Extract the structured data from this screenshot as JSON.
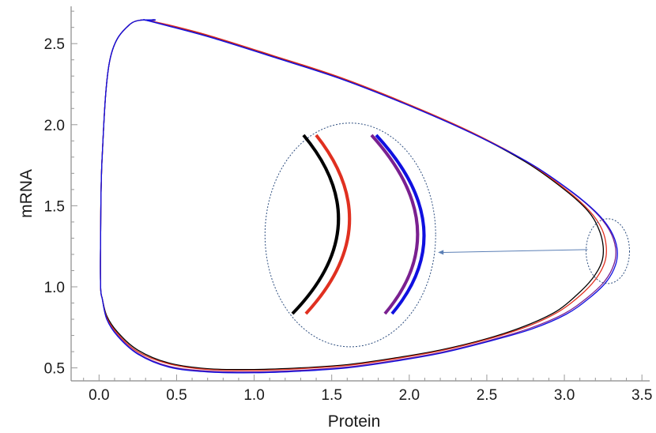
{
  "chart_data": {
    "type": "line",
    "xlabel": "Protein",
    "ylabel": "mRNA",
    "xlim": [
      -0.18,
      3.55
    ],
    "ylim": [
      0.42,
      2.73
    ],
    "xticks": [
      "0.0",
      "0.5",
      "1.0",
      "1.5",
      "2.0",
      "2.5",
      "3.0",
      "3.5"
    ],
    "xtick_values": [
      0,
      0.5,
      1,
      1.5,
      2,
      2.5,
      3,
      3.5
    ],
    "yticks": [
      "0.5",
      "1.0",
      "1.5",
      "2.0",
      "2.5"
    ],
    "ytick_values": [
      0.5,
      1,
      1.5,
      2,
      2.5
    ],
    "grid": false,
    "legend": "none",
    "series": [
      {
        "color": "#000000",
        "x": [
          0.02,
          0.05,
          0.12,
          0.25,
          0.45,
          0.7,
          1.0,
          1.3,
          1.6,
          1.9,
          2.2,
          2.5,
          2.75,
          2.95,
          3.08,
          3.18,
          3.24,
          3.25,
          3.22,
          3.15,
          3.0,
          2.75,
          2.4,
          2.0,
          1.55,
          1.1,
          0.7,
          0.42,
          0.3,
          0.3,
          0.36,
          0.2,
          0.07,
          0.02,
          0.01,
          0.01,
          0.02
        ],
        "y": [
          0.93,
          0.82,
          0.72,
          0.61,
          0.53,
          0.495,
          0.49,
          0.5,
          0.52,
          0.56,
          0.61,
          0.68,
          0.76,
          0.85,
          0.95,
          1.05,
          1.15,
          1.25,
          1.36,
          1.47,
          1.6,
          1.77,
          1.95,
          2.12,
          2.29,
          2.43,
          2.55,
          2.62,
          2.645,
          2.645,
          2.645,
          2.62,
          2.4,
          1.8,
          1.3,
          1.0,
          0.93
        ]
      },
      {
        "color": "#e03020",
        "x": [
          0.02,
          0.05,
          0.12,
          0.25,
          0.45,
          0.7,
          1.0,
          1.3,
          1.6,
          1.9,
          2.2,
          2.5,
          2.76,
          2.96,
          3.1,
          3.2,
          3.26,
          3.27,
          3.24,
          3.16,
          3.01,
          2.76,
          2.41,
          2.01,
          1.56,
          1.11,
          0.71,
          0.43,
          0.3,
          0.3,
          0.36,
          0.2,
          0.07,
          0.02,
          0.01,
          0.01,
          0.02
        ],
        "y": [
          0.93,
          0.81,
          0.71,
          0.6,
          0.525,
          0.49,
          0.485,
          0.495,
          0.515,
          0.555,
          0.605,
          0.675,
          0.755,
          0.845,
          0.945,
          1.045,
          1.15,
          1.25,
          1.36,
          1.47,
          1.6,
          1.77,
          1.95,
          2.12,
          2.29,
          2.43,
          2.55,
          2.62,
          2.645,
          2.645,
          2.645,
          2.62,
          2.4,
          1.8,
          1.3,
          1.0,
          0.93
        ]
      },
      {
        "color": "#7a2090",
        "x": [
          0.02,
          0.05,
          0.12,
          0.25,
          0.45,
          0.7,
          1.0,
          1.3,
          1.6,
          1.9,
          2.2,
          2.5,
          2.78,
          3.0,
          3.15,
          3.26,
          3.32,
          3.33,
          3.29,
          3.2,
          3.04,
          2.78,
          2.42,
          2.02,
          1.57,
          1.12,
          0.72,
          0.43,
          0.3,
          0.3,
          0.36,
          0.2,
          0.07,
          0.02,
          0.01,
          0.01,
          0.02
        ],
        "y": [
          0.93,
          0.8,
          0.7,
          0.59,
          0.51,
          0.48,
          0.475,
          0.485,
          0.505,
          0.545,
          0.595,
          0.665,
          0.745,
          0.835,
          0.935,
          1.035,
          1.14,
          1.24,
          1.35,
          1.46,
          1.59,
          1.76,
          1.94,
          2.11,
          2.28,
          2.42,
          2.54,
          2.615,
          2.645,
          2.645,
          2.645,
          2.62,
          2.4,
          1.8,
          1.3,
          1.0,
          0.93
        ]
      },
      {
        "color": "#1010e0",
        "x": [
          0.02,
          0.05,
          0.12,
          0.25,
          0.45,
          0.7,
          1.0,
          1.3,
          1.6,
          1.9,
          2.2,
          2.5,
          2.79,
          3.01,
          3.16,
          3.27,
          3.33,
          3.34,
          3.3,
          3.21,
          3.05,
          2.79,
          2.43,
          2.03,
          1.58,
          1.13,
          0.73,
          0.44,
          0.3,
          0.3,
          0.36,
          0.2,
          0.07,
          0.02,
          0.01,
          0.01,
          0.02
        ],
        "y": [
          0.93,
          0.8,
          0.695,
          0.585,
          0.505,
          0.475,
          0.47,
          0.48,
          0.5,
          0.54,
          0.59,
          0.66,
          0.74,
          0.83,
          0.93,
          1.03,
          1.135,
          1.235,
          1.345,
          1.455,
          1.585,
          1.755,
          1.935,
          2.105,
          2.275,
          2.415,
          2.535,
          2.61,
          2.645,
          2.645,
          2.645,
          2.62,
          2.4,
          1.8,
          1.3,
          1.0,
          0.93
        ]
      }
    ],
    "annotations": [
      {
        "type": "circle",
        "label": "zoom-region",
        "cx": 3.28,
        "cy": 1.22,
        "rx": 0.14,
        "ry": 0.2
      },
      {
        "type": "ellipse",
        "label": "zoom-inset",
        "cx": 1.62,
        "cy": 1.32,
        "rx": 0.55,
        "ry": 0.69
      }
    ]
  }
}
